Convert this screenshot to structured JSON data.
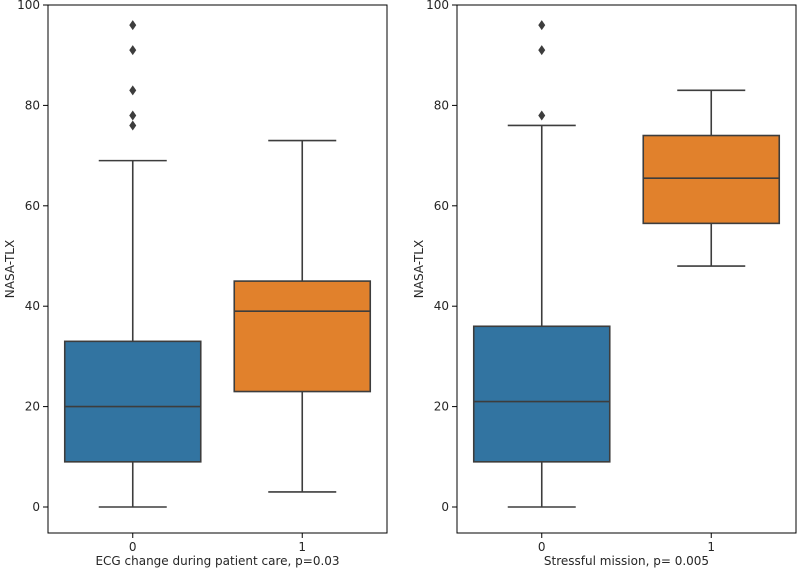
{
  "colors": {
    "box_0": "#3274a1",
    "box_1": "#e1812c",
    "line": "#3d3d3d",
    "frame": "#000000"
  },
  "chart_data": [
    {
      "type": "box",
      "xlabel": "ECG change during patient care, p=0.03",
      "ylabel": "NASA-TLX",
      "ylim": [
        0,
        100
      ],
      "yticks": [
        0,
        20,
        40,
        60,
        80,
        100
      ],
      "categories": [
        "0",
        "1"
      ],
      "boxes": [
        {
          "category": "0",
          "whisker_low": 0,
          "q1": 9,
          "median": 20,
          "q3": 33,
          "whisker_high": 69,
          "outliers": [
            76,
            78,
            83,
            91,
            96
          ]
        },
        {
          "category": "1",
          "whisker_low": 3,
          "q1": 23,
          "median": 39,
          "q3": 45,
          "whisker_high": 73,
          "outliers": []
        }
      ]
    },
    {
      "type": "box",
      "xlabel": "Stressful mission, p= 0.005",
      "ylabel": "NASA-TLX",
      "ylim": [
        0,
        100
      ],
      "yticks": [
        0,
        20,
        40,
        60,
        80,
        100
      ],
      "categories": [
        "0",
        "1"
      ],
      "boxes": [
        {
          "category": "0",
          "whisker_low": 0,
          "q1": 9,
          "median": 21,
          "q3": 36,
          "whisker_high": 76,
          "outliers": [
            78,
            91,
            96
          ]
        },
        {
          "category": "1",
          "whisker_low": 48,
          "q1": 56.5,
          "median": 65.5,
          "q3": 74,
          "whisker_high": 83,
          "outliers": []
        }
      ]
    }
  ]
}
